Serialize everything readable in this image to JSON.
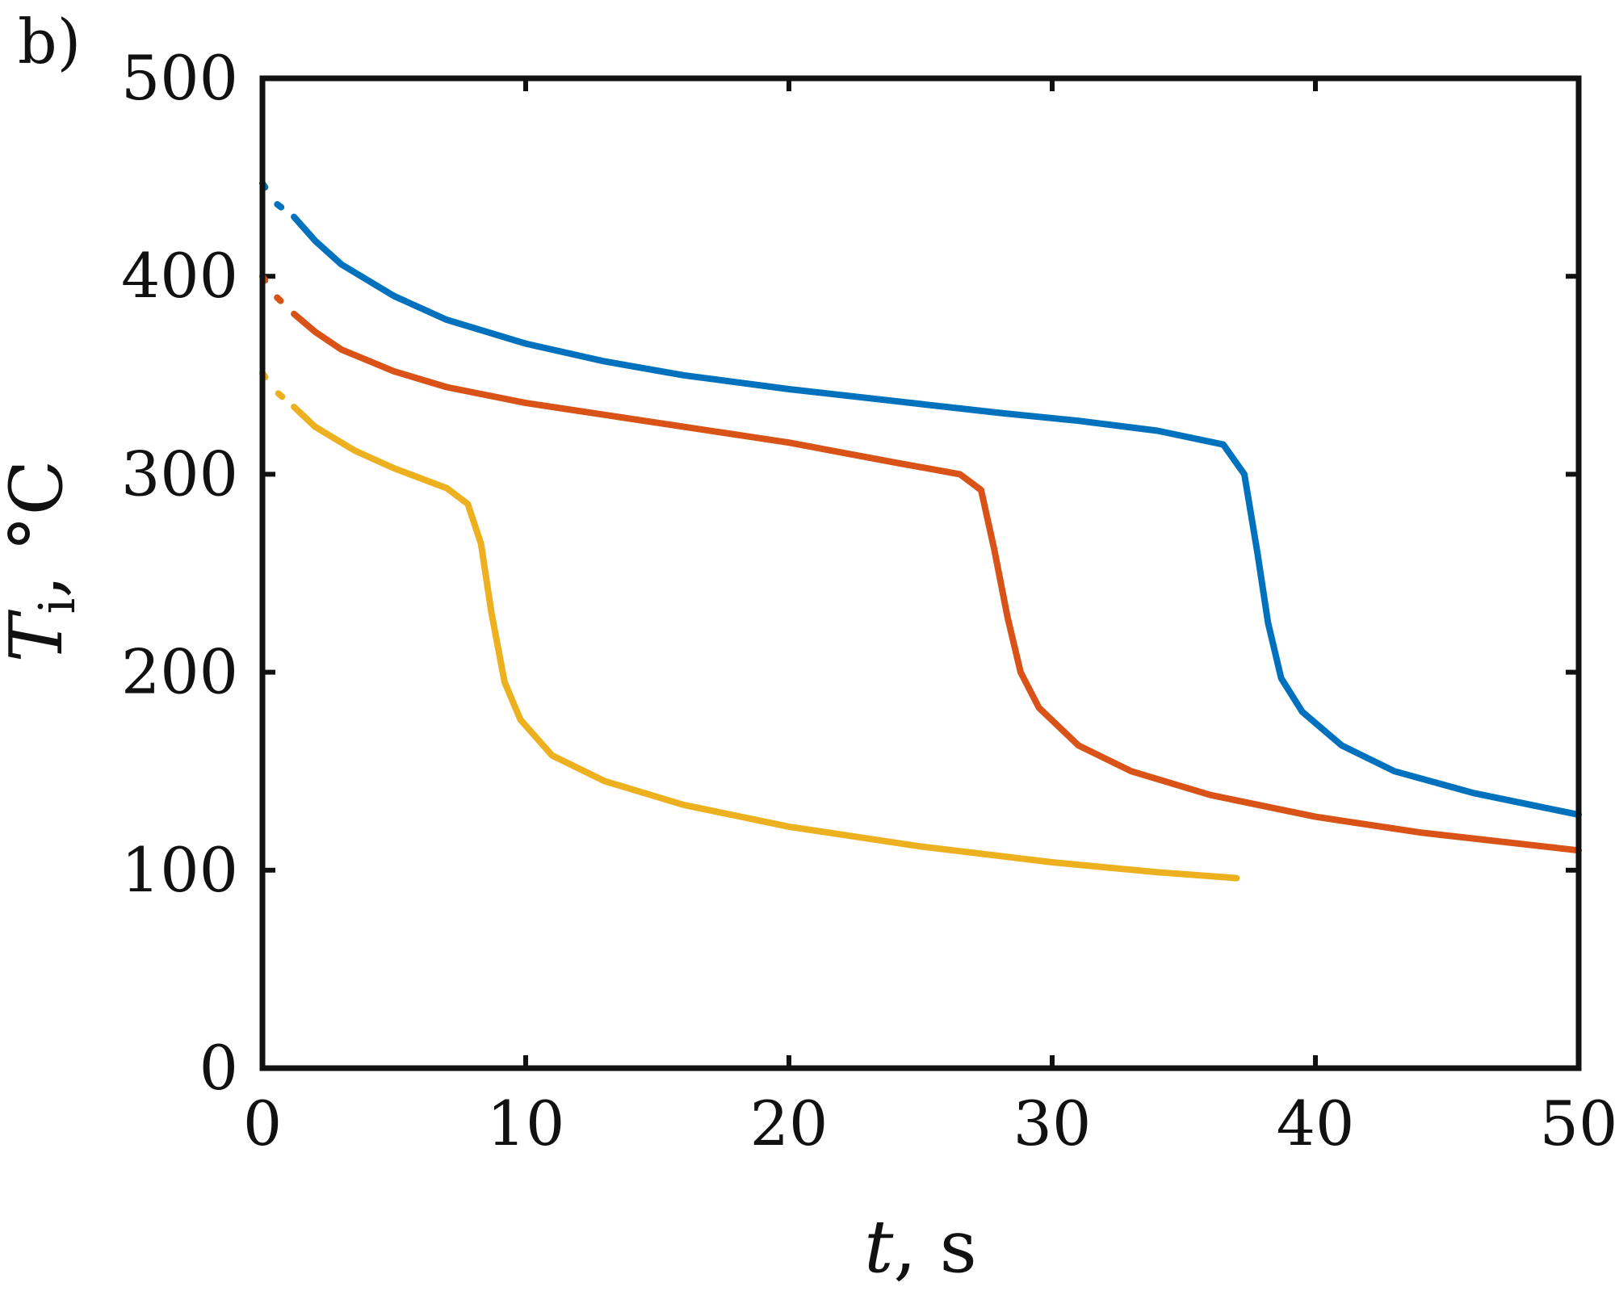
{
  "panel_label": "b)",
  "colors": {
    "blue": "#0072BD",
    "red": "#D95319",
    "yellow": "#EDB120",
    "axes": "#111111"
  },
  "chart_data": {
    "type": "line",
    "xlim": [
      0,
      50
    ],
    "ylim": [
      0,
      500
    ],
    "xticks": [
      "0",
      "10",
      "20",
      "30",
      "40",
      "50"
    ],
    "yticks": [
      "0",
      "100",
      "200",
      "300",
      "400",
      "500"
    ],
    "xlabel_var": "t",
    "xlabel_unit": ", s",
    "ylabel_var": "T",
    "ylabel_sub": "i",
    "ylabel_unit": ", °C",
    "grid": false,
    "box": true,
    "series": [
      {
        "color": "#0072BD",
        "x": [
          0,
          0.5,
          1.2,
          2,
          3,
          5,
          7,
          10,
          13,
          16,
          20,
          24,
          28,
          31,
          34,
          36.5,
          37.3,
          37.8,
          38.2,
          38.7,
          39.5,
          41,
          43,
          46,
          50
        ],
        "y": [
          447,
          437,
          430,
          418,
          406,
          390,
          378,
          366,
          357,
          350,
          343,
          337,
          331,
          327,
          322,
          315,
          300,
          260,
          225,
          197,
          180,
          163,
          150,
          139,
          128
        ]
      },
      {
        "color": "#D95319",
        "x": [
          0,
          0.5,
          1.2,
          2,
          3,
          5,
          7,
          10,
          13,
          16,
          20,
          24,
          26.5,
          27.3,
          27.8,
          28.3,
          28.8,
          29.5,
          31,
          33,
          36,
          40,
          44,
          50
        ],
        "y": [
          400,
          390,
          381,
          372,
          363,
          352,
          344,
          336,
          330,
          324,
          316,
          306,
          300,
          292,
          262,
          228,
          200,
          182,
          163,
          150,
          138,
          127,
          119,
          110
        ]
      },
      {
        "color": "#EDB120",
        "x": [
          0,
          0.5,
          1.2,
          2,
          3.5,
          5,
          7,
          7.8,
          8.3,
          8.7,
          9.2,
          9.8,
          11,
          13,
          16,
          20,
          25,
          30,
          34,
          37
        ],
        "y": [
          351,
          342,
          334,
          324,
          312,
          303,
          293,
          285,
          265,
          230,
          195,
          176,
          158,
          145,
          133,
          122,
          112,
          104,
          99,
          96
        ]
      }
    ]
  }
}
